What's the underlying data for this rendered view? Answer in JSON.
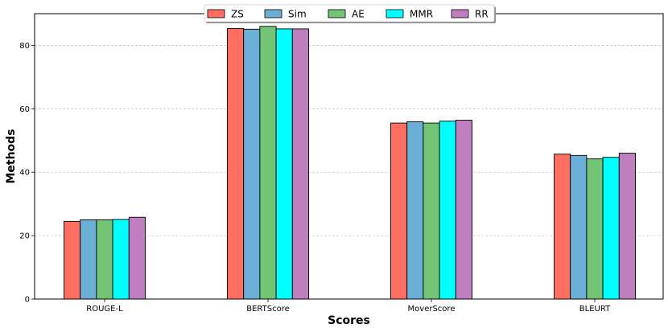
{
  "chart_data": {
    "type": "bar",
    "categories": [
      "ROUGE-L",
      "BERTScore",
      "MoverScore",
      "BLEURT"
    ],
    "series": [
      {
        "name": "ZS",
        "color": "#ff6f61",
        "values": [
          24.5,
          85.3,
          55.5,
          45.7
        ]
      },
      {
        "name": "Sim",
        "color": "#6baed6",
        "values": [
          25.0,
          85.1,
          55.9,
          45.3
        ]
      },
      {
        "name": "AE",
        "color": "#74c476",
        "values": [
          25.0,
          86.0,
          55.5,
          44.2
        ]
      },
      {
        "name": "MMR",
        "color": "#00ffff",
        "values": [
          25.1,
          85.2,
          56.1,
          44.7
        ]
      },
      {
        "name": "RR",
        "color": "#bf7fbf",
        "values": [
          25.8,
          85.2,
          56.4,
          46.0
        ]
      }
    ],
    "xlabel": "Scores",
    "ylabel": "Methods",
    "ylim": [
      0,
      90
    ],
    "yticks": [
      0,
      20,
      40,
      60,
      80
    ],
    "grid": "y-dashed",
    "legend": "top-center"
  }
}
